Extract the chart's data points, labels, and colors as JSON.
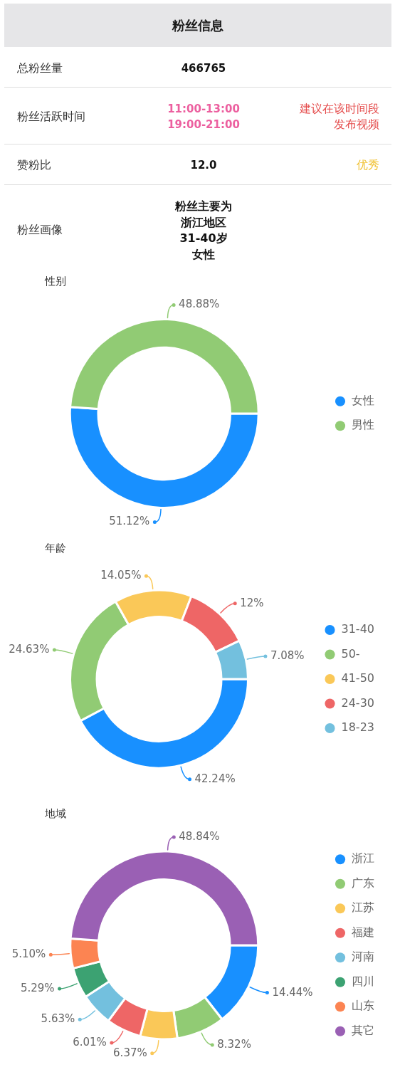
{
  "chart_data": [
    {
      "type": "other",
      "title": "粉丝信息",
      "annotations": [
        "总粉丝量",
        "466765",
        "粉丝活跃时间",
        "11:00-13:00",
        "19:00-21:00",
        "建议在该时间段发布视频",
        "赞粉比",
        "12.0",
        "优秀",
        "粉丝画像",
        "粉丝主要为",
        "浙江地区",
        "31-40岁",
        "女性"
      ]
    },
    {
      "type": "donut",
      "title": "性别",
      "categories": [
        "女性",
        "男性"
      ],
      "values": [
        51.12,
        48.88
      ],
      "colors": [
        "#1890ff",
        "#91cb74"
      ],
      "value_labels": [
        "51.12%",
        "48.88%"
      ],
      "legend": "right"
    },
    {
      "type": "donut",
      "title": "年龄",
      "categories": [
        "31-40",
        "50-",
        "41-50",
        "24-30",
        "18-23"
      ],
      "values": [
        42.24,
        24.63,
        14.05,
        12,
        7.08
      ],
      "colors": [
        "#1890ff",
        "#91cb74",
        "#fac858",
        "#ee6666",
        "#73c0de"
      ],
      "value_labels": [
        "42.24%",
        "24.63%",
        "14.05%",
        "12%",
        "7.08%"
      ],
      "legend": "right"
    },
    {
      "type": "donut",
      "title": "地域",
      "categories": [
        "浙江",
        "广东",
        "江苏",
        "福建",
        "河南",
        "四川",
        "山东",
        "其它"
      ],
      "values": [
        14.44,
        8.32,
        6.37,
        6.01,
        5.63,
        5.29,
        5.1,
        48.84
      ],
      "colors": [
        "#1890ff",
        "#91cb74",
        "#fac858",
        "#ee6666",
        "#73c0de",
        "#3ca272",
        "#fc8452",
        "#9a60b4"
      ],
      "value_labels": [
        "14.44%",
        "8.32%",
        "6.37%",
        "6.01%",
        "5.63%",
        "5.29%",
        "5.10%",
        "48.84%"
      ],
      "legend": "right"
    }
  ]
}
